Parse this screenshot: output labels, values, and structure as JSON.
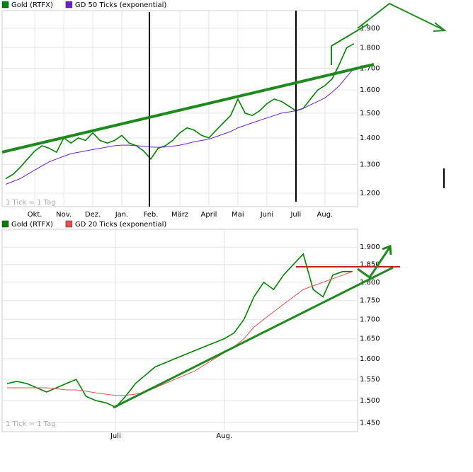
{
  "chart_data": [
    {
      "type": "line",
      "log_scale": true,
      "grid": true,
      "note": "1 Tick = 1 Tag",
      "categories": [
        null,
        null,
        null,
        null,
        "Okt.",
        null,
        null,
        null,
        "Nov.",
        null,
        null,
        null,
        "Dez.",
        null,
        null,
        null,
        "Jan.",
        null,
        null,
        null,
        "Feb.",
        null,
        null,
        null,
        "März",
        null,
        null,
        null,
        "April",
        null,
        null,
        null,
        "Mai",
        null,
        null,
        null,
        "Juni",
        null,
        null,
        null,
        "Juli",
        null,
        null,
        null,
        "Aug.",
        null,
        null,
        null,
        null
      ],
      "series": [
        {
          "name": "Gold (RTFX)",
          "color": "#008000",
          "values": [
            1250,
            1265,
            1290,
            1320,
            1350,
            1370,
            1360,
            1345,
            1400,
            1380,
            1400,
            1390,
            1420,
            1390,
            1380,
            1390,
            1410,
            1380,
            1370,
            1350,
            1320,
            1360,
            1370,
            1390,
            1420,
            1440,
            1430,
            1410,
            1400,
            1430,
            1460,
            1490,
            1560,
            1500,
            1490,
            1510,
            1540,
            1560,
            1550,
            1530,
            1510,
            1520,
            1560,
            1600,
            1620,
            1650,
            1720,
            1800,
            1820
          ]
        },
        {
          "name": "GD 50 Ticks (exponential)",
          "color": "#6a1fd0",
          "values": [
            1230,
            1240,
            1250,
            1265,
            1280,
            1295,
            1310,
            1320,
            1330,
            1340,
            1345,
            1350,
            1355,
            1360,
            1365,
            1370,
            1372,
            1372,
            1370,
            1368,
            1365,
            1364,
            1365,
            1368,
            1372,
            1378,
            1385,
            1390,
            1395,
            1405,
            1415,
            1425,
            1440,
            1450,
            1460,
            1470,
            1480,
            1490,
            1500,
            1505,
            1510,
            1520,
            1535,
            1550,
            1565,
            1590,
            1620,
            1660,
            1700
          ]
        }
      ],
      "ylim": [
        1156,
        1996
      ],
      "yticks": [
        {
          "value": 1200,
          "label": "1.200"
        },
        {
          "value": 1300,
          "label": "1.300"
        },
        {
          "value": 1400,
          "label": "1.400"
        },
        {
          "value": 1500,
          "label": "1.500"
        },
        {
          "value": 1600,
          "label": "1.600"
        },
        {
          "value": 1700,
          "label": "1.700"
        },
        {
          "value": 1800,
          "label": "1.800"
        },
        {
          "value": 1900,
          "label": "1.900"
        }
      ]
    },
    {
      "type": "line",
      "log_scale": true,
      "grid": true,
      "note": "1 Tick = 1 Tag",
      "categories": [
        null,
        null,
        null,
        null,
        null,
        null,
        null,
        null,
        null,
        null,
        null,
        "Juli",
        null,
        null,
        null,
        null,
        null,
        null,
        null,
        null,
        null,
        null,
        "Aug.",
        null,
        null,
        null,
        null,
        null,
        null,
        null,
        null,
        null,
        null,
        null,
        null,
        null
      ],
      "series": [
        {
          "name": "Gold (RTFX)",
          "color": "#008000",
          "values": [
            1540,
            1545,
            1540,
            1530,
            1520,
            1530,
            1540,
            1550,
            1510,
            1500,
            1495,
            1485,
            1510,
            1540,
            1560,
            1580,
            1590,
            1600,
            1610,
            1620,
            1630,
            1640,
            1650,
            1665,
            1700,
            1760,
            1800,
            1780,
            1820,
            1850,
            1880,
            1780,
            1760,
            1820,
            1830,
            1830
          ]
        },
        {
          "name": "GD 20 Ticks (exponential)",
          "color": "#e05050",
          "values": [
            1530,
            1530,
            1530,
            1530,
            1530,
            1528,
            1525,
            1525,
            1522,
            1518,
            1515,
            1512,
            1512,
            1515,
            1520,
            1530,
            1540,
            1550,
            1560,
            1570,
            1585,
            1600,
            1615,
            1630,
            1650,
            1680,
            1700,
            1720,
            1740,
            1760,
            1780,
            1790,
            1800,
            1810,
            1820,
            1830
          ]
        }
      ],
      "ylim": [
        1430,
        1953
      ],
      "yticks": [
        {
          "value": 1450,
          "label": "1.450"
        },
        {
          "value": 1500,
          "label": "1.500"
        },
        {
          "value": 1550,
          "label": "1.550"
        },
        {
          "value": 1600,
          "label": "1.600"
        },
        {
          "value": 1650,
          "label": "1.650"
        },
        {
          "value": 1700,
          "label": "1.700"
        },
        {
          "value": 1750,
          "label": "1.750"
        },
        {
          "value": 1800,
          "label": "1.800"
        },
        {
          "value": 1850,
          "label": "1.850"
        },
        {
          "value": 1900,
          "label": "1.900"
        }
      ]
    }
  ]
}
